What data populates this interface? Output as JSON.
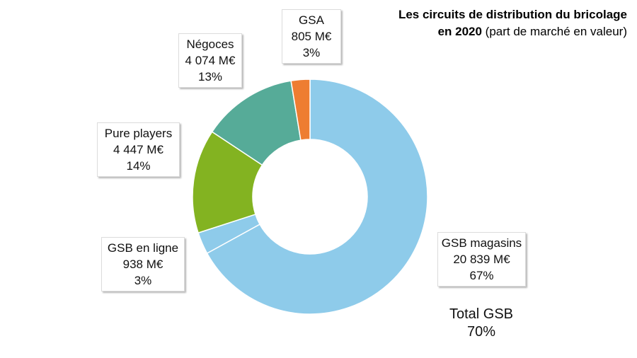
{
  "title": {
    "bold": "Les circuits de distribution du bricolage",
    "line2_bold": "en 2020",
    "line2_normal": " (part de marché en valeur)"
  },
  "chart_data": {
    "type": "pie",
    "donut": true,
    "title": "Les circuits de distribution du bricolage en 2020 (part de marché en valeur)",
    "unit": "M€",
    "slices": [
      {
        "name": "GSB magasins",
        "value": 20839,
        "value_label": "20 839  M€",
        "percent_label": "67%",
        "color": "#8ecbea"
      },
      {
        "name": "GSB en ligne",
        "value": 938,
        "value_label": "938  M€",
        "percent_label": "3%",
        "color": "#8ecbea"
      },
      {
        "name": "Pure players",
        "value": 4447,
        "value_label": "4 447  M€",
        "percent_label": "14%",
        "color": "#83b321"
      },
      {
        "name": "Négoces",
        "value": 4074,
        "value_label": "4 074  M€",
        "percent_label": "13%",
        "color": "#56ab98"
      },
      {
        "name": "GSA",
        "value": 805,
        "value_label": "805  M€",
        "percent_label": "3%",
        "color": "#ee7d31"
      }
    ],
    "annotation": {
      "line1": "Total GSB",
      "line2": "70%"
    }
  }
}
